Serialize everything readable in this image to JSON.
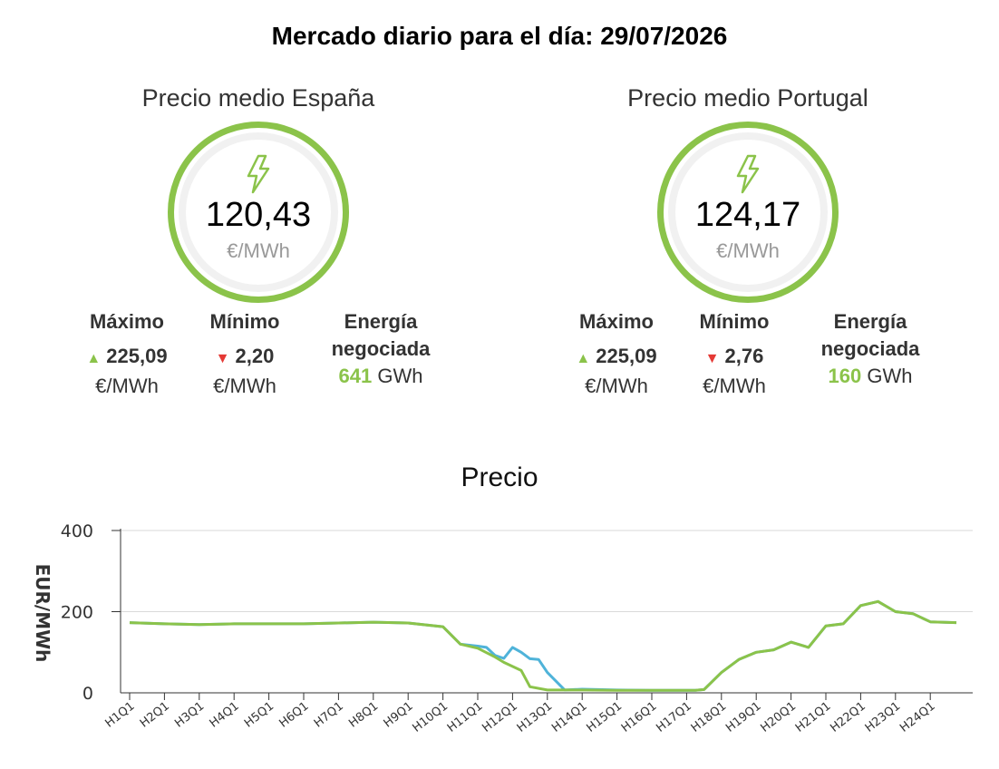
{
  "header": {
    "title": "Mercado diario para el día: 29/07/2026"
  },
  "spain": {
    "title": "Precio medio España",
    "price": "120,43",
    "unit": "€/MWh",
    "max_label": "Máximo",
    "max_value": "225,09",
    "max_unit": "€/MWh",
    "min_label": "Mínimo",
    "min_value": "2,20",
    "min_unit": "€/MWh",
    "energy_label_1": "Energía",
    "energy_label_2": "negociada",
    "energy_value": "641",
    "energy_unit": "GWh"
  },
  "portugal": {
    "title": "Precio medio Portugal",
    "price": "124,17",
    "unit": "€/MWh",
    "max_label": "Máximo",
    "max_value": "225,09",
    "max_unit": "€/MWh",
    "min_label": "Mínimo",
    "min_value": "2,76",
    "min_unit": "€/MWh",
    "energy_label_1": "Energía",
    "energy_label_2": "negociada",
    "energy_value": "160",
    "energy_unit": "GWh"
  },
  "colors": {
    "accent_green": "#8bc34a",
    "down_red": "#e53935",
    "series_blue": "#4fb3d9",
    "series_green": "#8bc34a",
    "gauge_icon": "lightning-bolt-icon"
  },
  "chart_data": {
    "type": "line",
    "title": "Precio",
    "ylabel": "EUR/MWh",
    "xlabel": "",
    "ylim": [
      0,
      400
    ],
    "yticks": [
      0,
      200,
      400
    ],
    "grid": true,
    "x_ticks": [
      "H1Q1",
      "H2Q1",
      "H3Q1",
      "H4Q1",
      "H5Q1",
      "H6Q1",
      "H7Q1",
      "H8Q1",
      "H9Q1",
      "H10Q1",
      "H11Q1",
      "H12Q1",
      "H13Q1",
      "H14Q1",
      "H15Q1",
      "H16Q1",
      "H17Q1",
      "H18Q1",
      "H19Q1",
      "H20Q1",
      "H21Q1",
      "H22Q1",
      "H23Q1",
      "H24Q1"
    ],
    "x_range": [
      1,
      24.75
    ],
    "series": [
      {
        "x": [
          1,
          2,
          3,
          4,
          5,
          6,
          7,
          8,
          9,
          10,
          10.5,
          11,
          11.25,
          11.5,
          11.75,
          12,
          12.25,
          12.5,
          12.75,
          13,
          13.5,
          14,
          15,
          16,
          17,
          17.25,
          17.5,
          18,
          18.5,
          19,
          19.5,
          20,
          20.5,
          21,
          21.5,
          22,
          22.5,
          23,
          23.5,
          24,
          24.75
        ],
        "values": [
          173,
          170,
          168,
          170,
          170,
          170,
          172,
          174,
          172,
          163,
          120,
          115,
          112,
          92,
          85,
          112,
          100,
          84,
          82,
          50,
          7,
          9,
          7,
          6,
          6,
          6,
          8,
          50,
          82,
          100,
          106,
          125,
          112,
          165,
          170,
          215,
          225,
          200,
          195,
          175,
          173
        ]
      },
      {
        "x": [
          1,
          2,
          3,
          4,
          5,
          6,
          7,
          8,
          9,
          10,
          10.5,
          11,
          11.5,
          11.75,
          12,
          12.25,
          12.5,
          13,
          13.5,
          14,
          15,
          16,
          17,
          17.25,
          17.5,
          18,
          18.5,
          19,
          19.5,
          20,
          20.5,
          21,
          21.5,
          22,
          22.5,
          23,
          23.5,
          24,
          24.75
        ],
        "values": [
          173,
          170,
          168,
          170,
          170,
          170,
          172,
          174,
          172,
          163,
          120,
          110,
          88,
          75,
          65,
          55,
          15,
          7,
          7,
          7,
          6,
          6,
          6,
          6,
          8,
          50,
          82,
          100,
          106,
          125,
          112,
          165,
          170,
          215,
          225,
          200,
          195,
          175,
          173
        ]
      }
    ]
  }
}
